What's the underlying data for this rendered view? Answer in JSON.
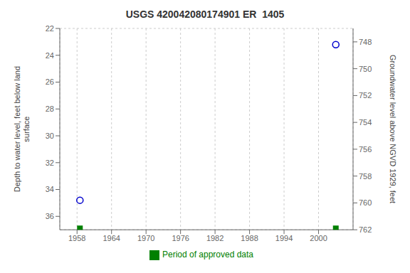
{
  "chart_data": {
    "type": "scatter",
    "title": "USGS 420042080174901 ER  1405",
    "ylabel": "Depth to water level, feet below land\nsurface",
    "y2label": "Groundwater level above NGVD 1929, feet",
    "xlim": [
      1955,
      2006
    ],
    "xticks": [
      1958,
      1964,
      1970,
      1976,
      1982,
      1988,
      1994,
      2000
    ],
    "ylim": [
      37,
      22
    ],
    "yticks": [
      22,
      24,
      26,
      28,
      30,
      32,
      34,
      36
    ],
    "y2lim": [
      762,
      747
    ],
    "y2ticks": [
      762,
      760,
      758,
      756,
      754,
      752,
      750,
      748
    ],
    "grid": true,
    "legend": "bottom",
    "series": [
      {
        "color": "#0000cc",
        "marker": "circle",
        "x": [
          1958.5,
          2003.0
        ],
        "values": [
          34.8,
          23.2
        ]
      },
      {
        "name": "Period of approved data",
        "color": "#008000",
        "marker": "square",
        "x": [
          1958.5,
          2003.0
        ],
        "values": [
          36.9,
          36.9
        ]
      }
    ]
  }
}
